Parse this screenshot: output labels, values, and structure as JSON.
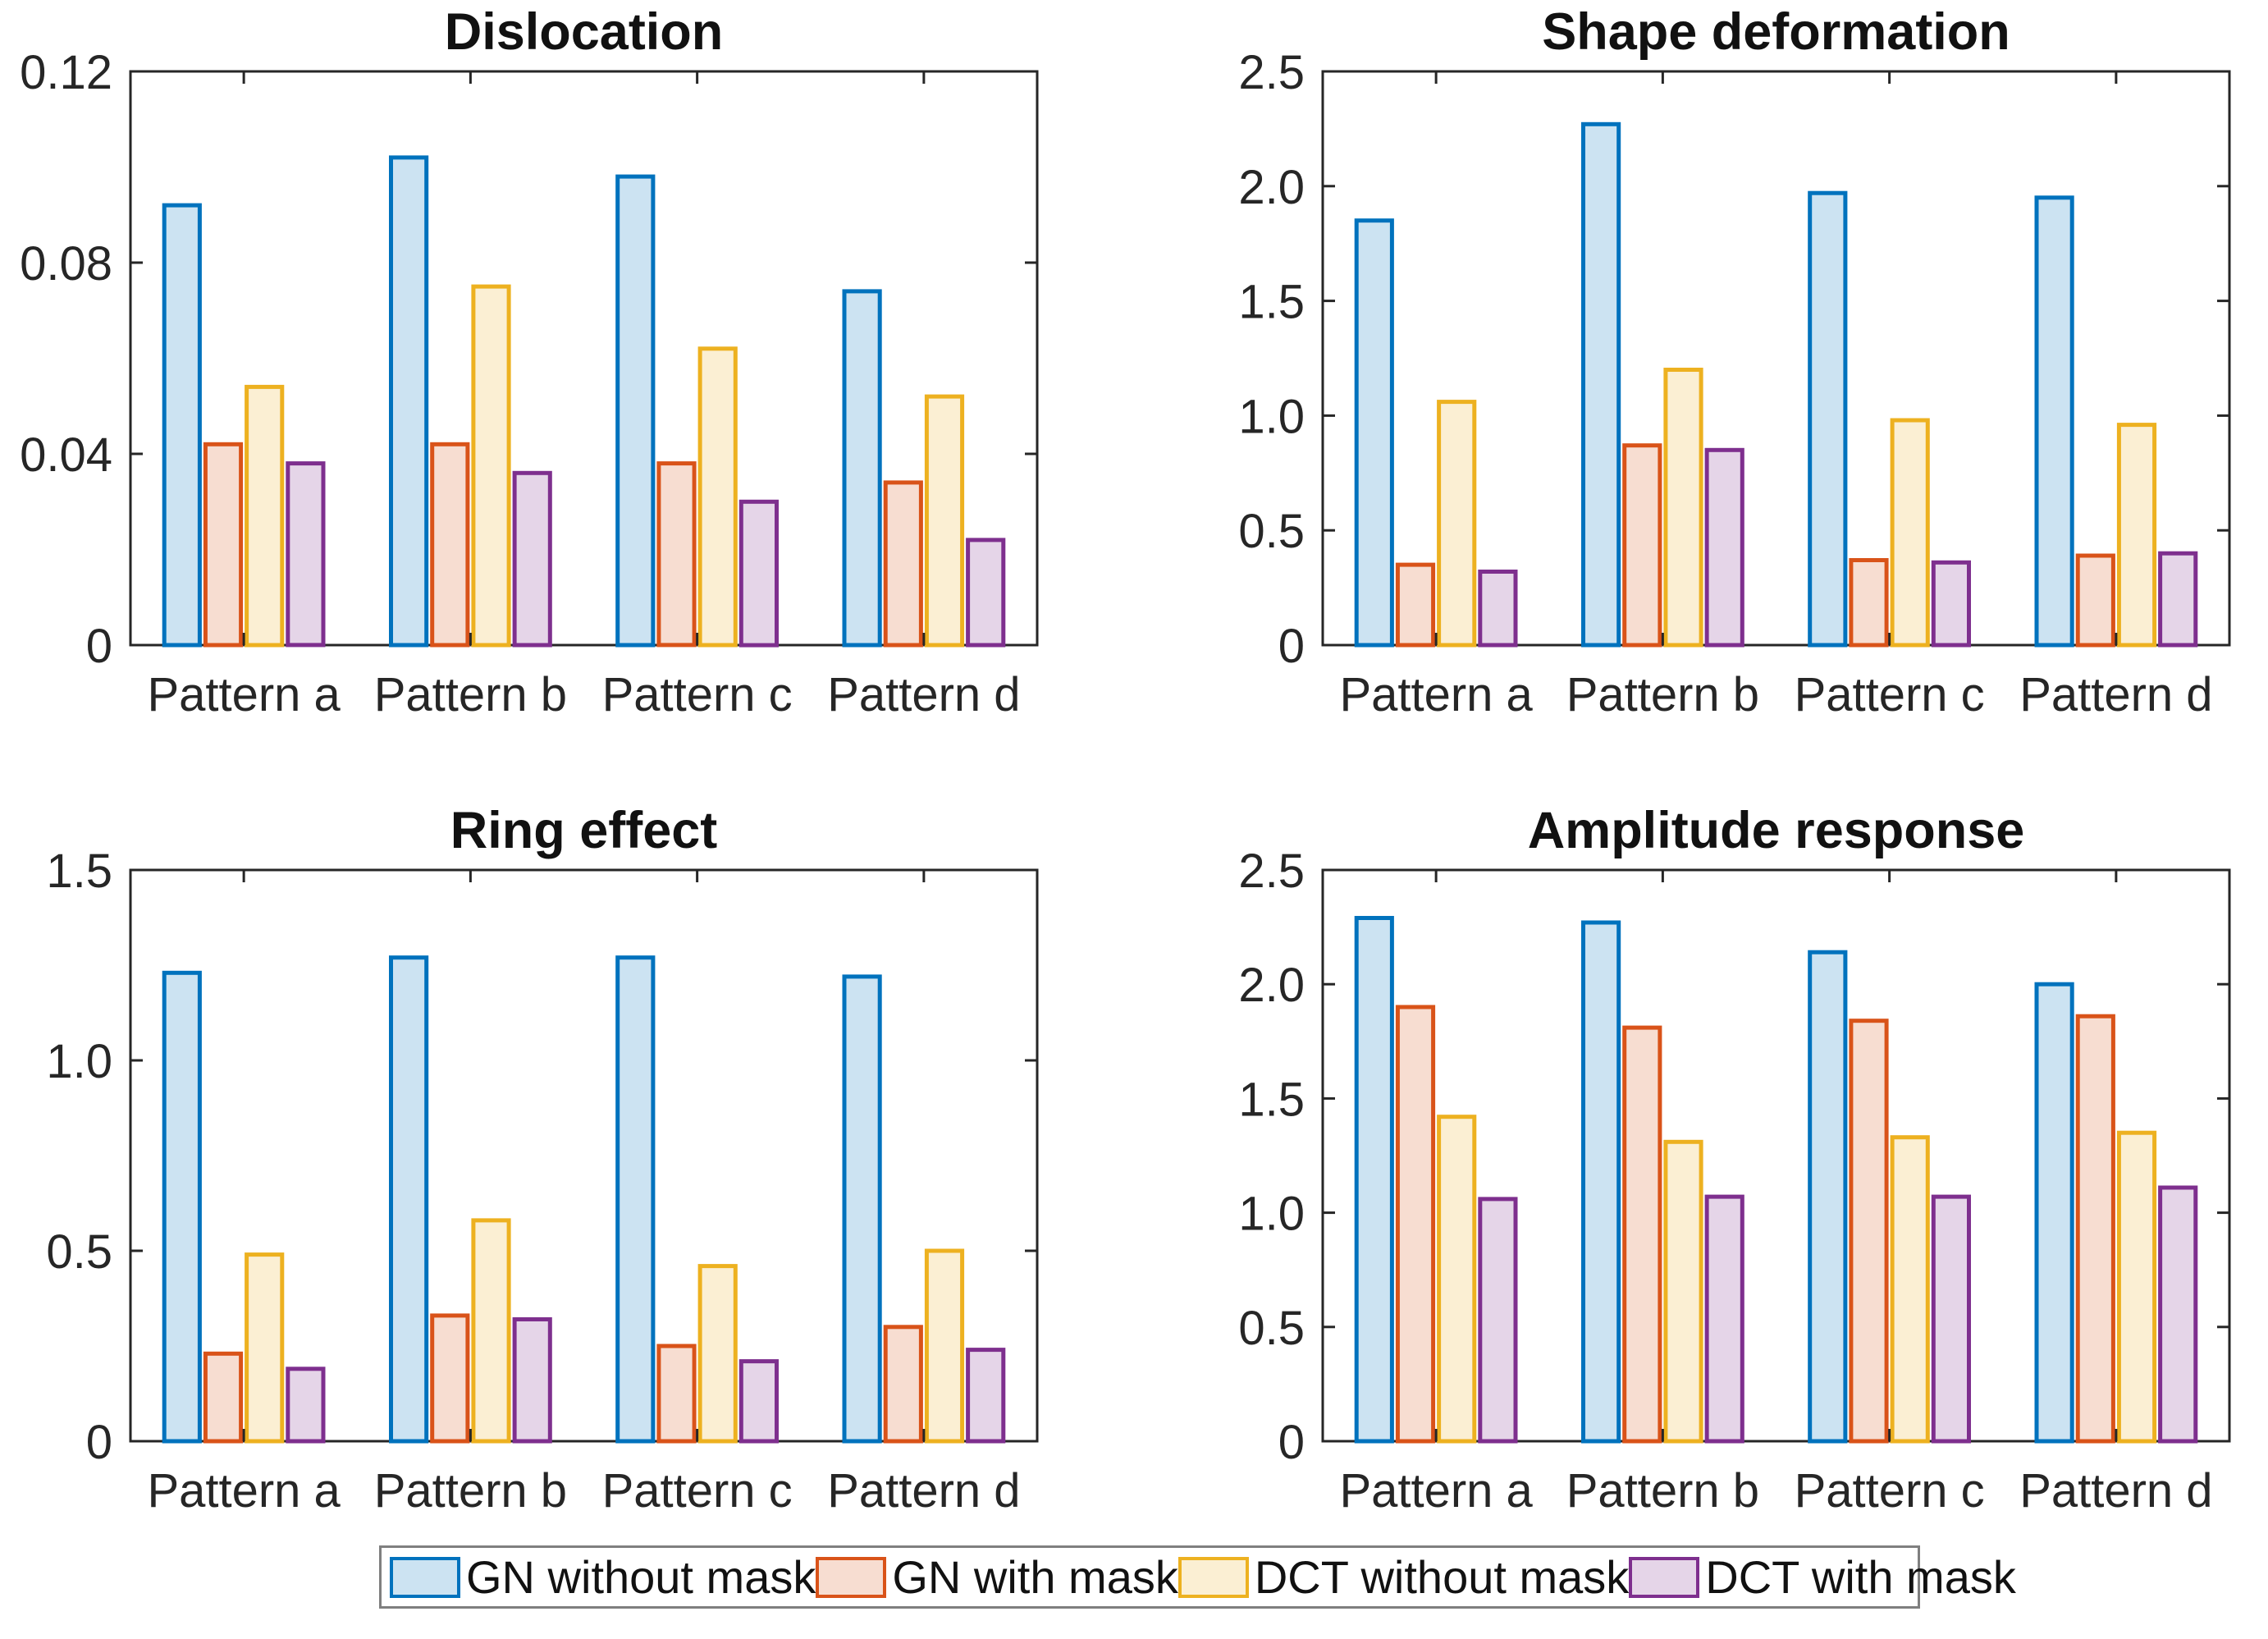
{
  "figure": {
    "background": "#ffffff",
    "axis_color": "#262626",
    "text_color": "#262626",
    "legend_border_color": "#7f7f7f"
  },
  "series": [
    {
      "name": "GN without mask",
      "edge_color": "#0072BD",
      "fill_color": "#CCE3F2"
    },
    {
      "name": "GN with mask",
      "edge_color": "#D95319",
      "fill_color": "#F7DDD1"
    },
    {
      "name": "DCT without mask",
      "edge_color": "#EDB120",
      "fill_color": "#FBEFD3"
    },
    {
      "name": "DCT with mask",
      "edge_color": "#7E2F8E",
      "fill_color": "#E5D5E8"
    }
  ],
  "chart_data": [
    {
      "type": "bar",
      "title": "Dislocation",
      "categories": [
        "Pattern a",
        "Pattern b",
        "Pattern c",
        "Pattern d"
      ],
      "series": [
        {
          "name": "GN without mask",
          "values": [
            0.092,
            0.102,
            0.098,
            0.074
          ]
        },
        {
          "name": "GN with mask",
          "values": [
            0.042,
            0.042,
            0.038,
            0.034
          ]
        },
        {
          "name": "DCT without mask",
          "values": [
            0.054,
            0.075,
            0.062,
            0.052
          ]
        },
        {
          "name": "DCT with mask",
          "values": [
            0.038,
            0.036,
            0.03,
            0.022
          ]
        }
      ],
      "ylim": [
        0,
        0.12
      ],
      "yticks": [
        0,
        0.04,
        0.08,
        0.12
      ],
      "ytick_labels": [
        "0",
        "0.04",
        "0.08",
        "0.12"
      ],
      "grid": false,
      "legend_position": "shared-bottom"
    },
    {
      "type": "bar",
      "title": "Shape deformation",
      "categories": [
        "Pattern a",
        "Pattern b",
        "Pattern c",
        "Pattern d"
      ],
      "series": [
        {
          "name": "GN without mask",
          "values": [
            1.85,
            2.27,
            1.97,
            1.95
          ]
        },
        {
          "name": "GN with mask",
          "values": [
            0.35,
            0.87,
            0.37,
            0.39
          ]
        },
        {
          "name": "DCT without mask",
          "values": [
            1.06,
            1.2,
            0.98,
            0.96
          ]
        },
        {
          "name": "DCT with mask",
          "values": [
            0.32,
            0.85,
            0.36,
            0.4
          ]
        }
      ],
      "ylim": [
        0,
        2.5
      ],
      "yticks": [
        0,
        0.5,
        1.0,
        1.5,
        2.0,
        2.5
      ],
      "ytick_labels": [
        "0",
        "0.5",
        "1.0",
        "1.5",
        "2.0",
        "2.5"
      ],
      "grid": false,
      "legend_position": "shared-bottom"
    },
    {
      "type": "bar",
      "title": "Ring effect",
      "categories": [
        "Pattern a",
        "Pattern b",
        "Pattern c",
        "Pattern d"
      ],
      "series": [
        {
          "name": "GN without mask",
          "values": [
            1.23,
            1.27,
            1.27,
            1.22
          ]
        },
        {
          "name": "GN with mask",
          "values": [
            0.23,
            0.33,
            0.25,
            0.3
          ]
        },
        {
          "name": "DCT without mask",
          "values": [
            0.49,
            0.58,
            0.46,
            0.5
          ]
        },
        {
          "name": "DCT with mask",
          "values": [
            0.19,
            0.32,
            0.21,
            0.24
          ]
        }
      ],
      "ylim": [
        0,
        1.5
      ],
      "yticks": [
        0,
        0.5,
        1.0,
        1.5
      ],
      "ytick_labels": [
        "0",
        "0.5",
        "1.0",
        "1.5"
      ],
      "grid": false,
      "legend_position": "shared-bottom"
    },
    {
      "type": "bar",
      "title": "Amplitude response",
      "categories": [
        "Pattern a",
        "Pattern b",
        "Pattern c",
        "Pattern d"
      ],
      "series": [
        {
          "name": "GN without mask",
          "values": [
            2.29,
            2.27,
            2.14,
            2.0
          ]
        },
        {
          "name": "GN with mask",
          "values": [
            1.9,
            1.81,
            1.84,
            1.86
          ]
        },
        {
          "name": "DCT without mask",
          "values": [
            1.42,
            1.31,
            1.33,
            1.35
          ]
        },
        {
          "name": "DCT with mask",
          "values": [
            1.06,
            1.07,
            1.07,
            1.11
          ]
        }
      ],
      "ylim": [
        0,
        2.5
      ],
      "yticks": [
        0,
        0.5,
        1.0,
        1.5,
        2.0,
        2.5
      ],
      "ytick_labels": [
        "0",
        "0.5",
        "1.0",
        "1.5",
        "2.0",
        "2.5"
      ],
      "grid": false,
      "legend_position": "shared-bottom"
    }
  ]
}
